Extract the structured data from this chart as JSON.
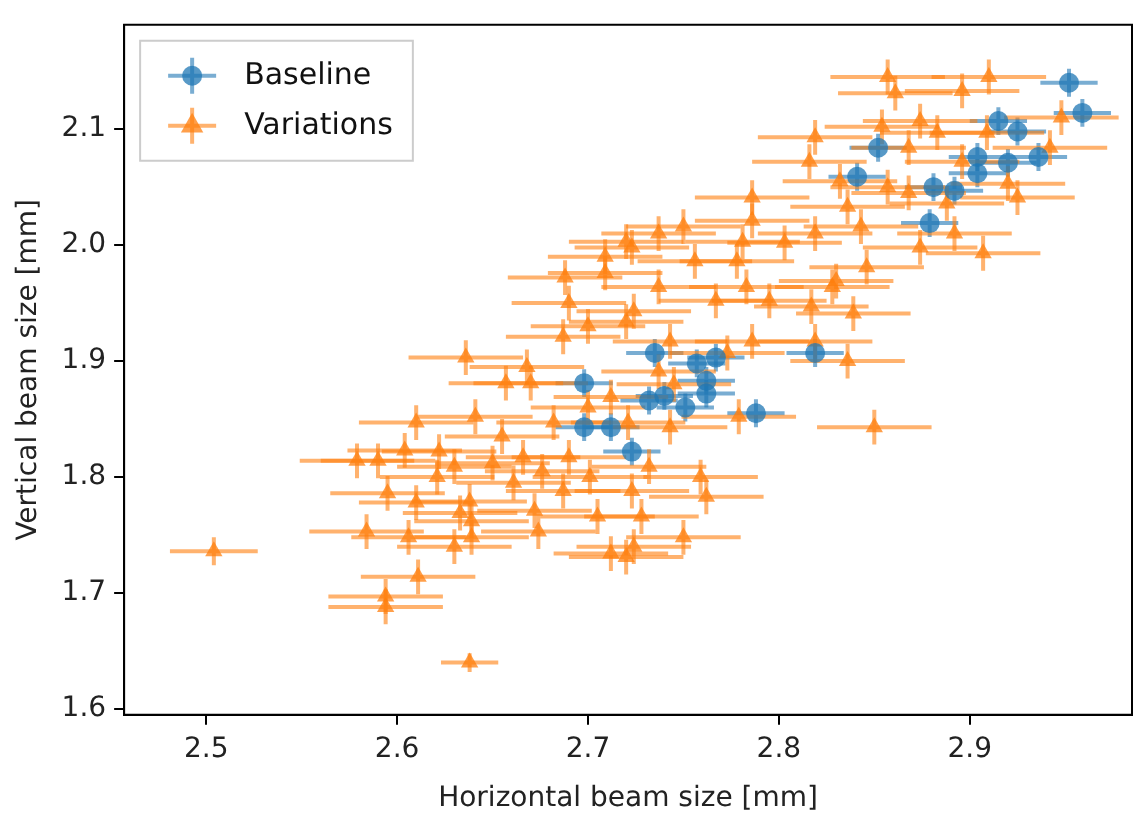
{
  "chart_data": {
    "type": "scatter",
    "xlabel": "Horizontal beam size [mm]",
    "ylabel": "Vertical beam size [mm]",
    "xlim": [
      2.457,
      2.985
    ],
    "xticks": [
      2.5,
      2.6,
      2.7,
      2.8,
      2.9
    ],
    "ylim": [
      1.595,
      2.19
    ],
    "yticks": [
      1.6,
      1.7,
      1.8,
      1.9,
      {
        "value": 2.0,
        "label": "2.0"
      },
      2.1
    ],
    "grid": false,
    "legend": "top left",
    "series": [
      {
        "name": "Baseline",
        "color": "#1f77b4",
        "marker": "circle",
        "x": [
          2.952,
          2.959,
          2.915,
          2.925,
          2.936,
          2.904,
          2.92,
          2.852,
          2.841,
          2.881,
          2.892,
          2.879,
          2.904,
          2.735,
          2.757,
          2.767,
          2.762,
          2.819,
          2.732,
          2.751,
          2.762,
          2.788,
          2.723,
          2.698,
          2.698,
          2.712,
          2.74
        ],
        "values": [
          2.14,
          2.114,
          2.107,
          2.098,
          2.076,
          2.076,
          2.071,
          2.084,
          2.059,
          2.05,
          2.047,
          2.019,
          2.062,
          1.907,
          1.898,
          1.903,
          1.883,
          1.907,
          1.866,
          1.86,
          1.872,
          1.855,
          1.822,
          1.881,
          1.843,
          1.843,
          1.87
        ],
        "xerrors": [
          0.015,
          0.015,
          0.015,
          0.015,
          0.015,
          0.015,
          0.015,
          0.015,
          0.015,
          0.015,
          0.015,
          0.015,
          0.015,
          0.015,
          0.015,
          0.015,
          0.015,
          0.015,
          0.015,
          0.015,
          0.015,
          0.015,
          0.015,
          0.015,
          0.015,
          0.015,
          0.015
        ],
        "errors": [
          0.012,
          0.012,
          0.012,
          0.012,
          0.012,
          0.012,
          0.012,
          0.012,
          0.012,
          0.012,
          0.012,
          0.012,
          0.012,
          0.012,
          0.012,
          0.012,
          0.012,
          0.012,
          0.012,
          0.012,
          0.012,
          0.012,
          0.012,
          0.012,
          0.012,
          0.012,
          0.012
        ]
      },
      {
        "name": "Variations",
        "color": "#ff7f0e",
        "marker": "triangle",
        "x": [
          2.688,
          2.709,
          2.709,
          2.72,
          2.687,
          2.636,
          2.668,
          2.72,
          2.857,
          2.861,
          2.896,
          2.91,
          2.854,
          2.874,
          2.883,
          2.868,
          2.819,
          2.816,
          2.896,
          2.909,
          2.942,
          2.948,
          2.92,
          2.925,
          2.832,
          2.857,
          2.868,
          2.888,
          2.836,
          2.786,
          2.786,
          2.843,
          2.892,
          2.874,
          2.907,
          2.75,
          2.737,
          2.723,
          2.781,
          2.803,
          2.819,
          2.756,
          2.778,
          2.828,
          2.846,
          2.737,
          2.767,
          2.783,
          2.724,
          2.795,
          2.817,
          2.839,
          2.83,
          2.743,
          2.786,
          2.773,
          2.819,
          2.836,
          2.85,
          2.779,
          2.743,
          2.721,
          2.732,
          2.759,
          2.762,
          2.723,
          2.728,
          2.75,
          2.724,
          2.737,
          2.504,
          2.594,
          2.594,
          2.611,
          2.638,
          2.584,
          2.604,
          2.606,
          2.63,
          2.639,
          2.595,
          2.61,
          2.579,
          2.59,
          2.61,
          2.641,
          2.622,
          2.63,
          2.638,
          2.633,
          2.65,
          2.661,
          2.674,
          2.672,
          2.687,
          2.705,
          2.712,
          2.657,
          2.67,
          2.655,
          2.69,
          2.676,
          2.701,
          2.666,
          2.621,
          2.639,
          2.682,
          2.712,
          2.72,
          2.7,
          2.745,
          2.7,
          2.69
        ],
        "values": [
          1.972,
          1.99,
          1.976,
          2.003,
          1.921,
          1.903,
          1.895,
          1.934,
          2.145,
          2.131,
          2.133,
          2.145,
          2.102,
          2.107,
          2.097,
          2.084,
          2.093,
          2.072,
          2.072,
          2.097,
          2.084,
          2.11,
          2.053,
          2.041,
          2.055,
          2.05,
          2.045,
          2.036,
          2.033,
          2.041,
          2.021,
          2.016,
          2.01,
          1.998,
          1.993,
          2.016,
          2.01,
          1.998,
          2.003,
          2.002,
          2.01,
          1.986,
          1.986,
          1.964,
          1.981,
          1.964,
          1.952,
          1.964,
          1.943,
          1.952,
          1.947,
          1.941,
          1.969,
          1.917,
          1.917,
          1.907,
          1.917,
          1.9,
          1.843,
          1.852,
          1.843,
          1.847,
          1.809,
          1.8,
          1.783,
          1.788,
          1.766,
          1.748,
          1.74,
          1.891,
          1.736,
          1.688,
          1.697,
          1.714,
          1.64,
          1.753,
          1.823,
          1.748,
          1.74,
          1.748,
          1.786,
          1.778,
          1.814,
          1.814,
          1.847,
          1.852,
          1.822,
          1.809,
          1.779,
          1.769,
          1.812,
          1.795,
          1.753,
          1.771,
          1.788,
          1.766,
          1.734,
          1.881,
          1.881,
          1.835,
          1.817,
          1.805,
          1.8,
          1.817,
          1.8,
          1.762,
          1.847,
          1.869,
          1.731,
          1.86,
          1.88,
          1.93,
          1.95
        ],
        "xerrors": [
          0.03,
          0.03,
          0.03,
          0.03,
          0.03,
          0.03,
          0.03,
          0.03,
          0.03,
          0.03,
          0.03,
          0.03,
          0.03,
          0.03,
          0.03,
          0.03,
          0.03,
          0.03,
          0.03,
          0.03,
          0.03,
          0.03,
          0.03,
          0.03,
          0.03,
          0.03,
          0.03,
          0.03,
          0.03,
          0.03,
          0.03,
          0.03,
          0.03,
          0.03,
          0.03,
          0.03,
          0.03,
          0.03,
          0.03,
          0.03,
          0.03,
          0.03,
          0.03,
          0.03,
          0.03,
          0.03,
          0.03,
          0.03,
          0.03,
          0.03,
          0.03,
          0.03,
          0.03,
          0.03,
          0.03,
          0.03,
          0.03,
          0.03,
          0.03,
          0.03,
          0.03,
          0.03,
          0.03,
          0.03,
          0.03,
          0.03,
          0.03,
          0.03,
          0.03,
          0.03,
          0.023,
          0.03,
          0.03,
          0.03,
          0.015,
          0.03,
          0.03,
          0.03,
          0.03,
          0.03,
          0.03,
          0.03,
          0.03,
          0.03,
          0.03,
          0.03,
          0.03,
          0.03,
          0.03,
          0.03,
          0.03,
          0.03,
          0.03,
          0.03,
          0.03,
          0.03,
          0.03,
          0.03,
          0.03,
          0.03,
          0.03,
          0.03,
          0.03,
          0.03,
          0.03,
          0.03,
          0.03,
          0.03,
          0.03,
          0.03,
          0.03,
          0.03,
          0.03
        ],
        "errors": [
          0.015,
          0.015,
          0.015,
          0.015,
          0.015,
          0.015,
          0.015,
          0.015,
          0.015,
          0.015,
          0.015,
          0.015,
          0.015,
          0.015,
          0.015,
          0.015,
          0.015,
          0.015,
          0.015,
          0.015,
          0.015,
          0.015,
          0.015,
          0.015,
          0.015,
          0.015,
          0.015,
          0.015,
          0.015,
          0.015,
          0.015,
          0.015,
          0.015,
          0.015,
          0.015,
          0.015,
          0.015,
          0.015,
          0.015,
          0.015,
          0.015,
          0.015,
          0.015,
          0.015,
          0.015,
          0.015,
          0.015,
          0.015,
          0.015,
          0.015,
          0.015,
          0.015,
          0.015,
          0.015,
          0.015,
          0.015,
          0.015,
          0.015,
          0.015,
          0.015,
          0.015,
          0.015,
          0.015,
          0.015,
          0.015,
          0.015,
          0.015,
          0.015,
          0.015,
          0.015,
          0.012,
          0.015,
          0.015,
          0.015,
          0.008,
          0.015,
          0.015,
          0.015,
          0.015,
          0.015,
          0.015,
          0.015,
          0.015,
          0.015,
          0.015,
          0.015,
          0.015,
          0.015,
          0.015,
          0.015,
          0.015,
          0.015,
          0.015,
          0.015,
          0.015,
          0.015,
          0.015,
          0.015,
          0.015,
          0.015,
          0.015,
          0.015,
          0.015,
          0.015,
          0.015,
          0.015,
          0.015,
          0.015,
          0.015,
          0.015,
          0.015,
          0.015,
          0.015
        ]
      }
    ]
  }
}
